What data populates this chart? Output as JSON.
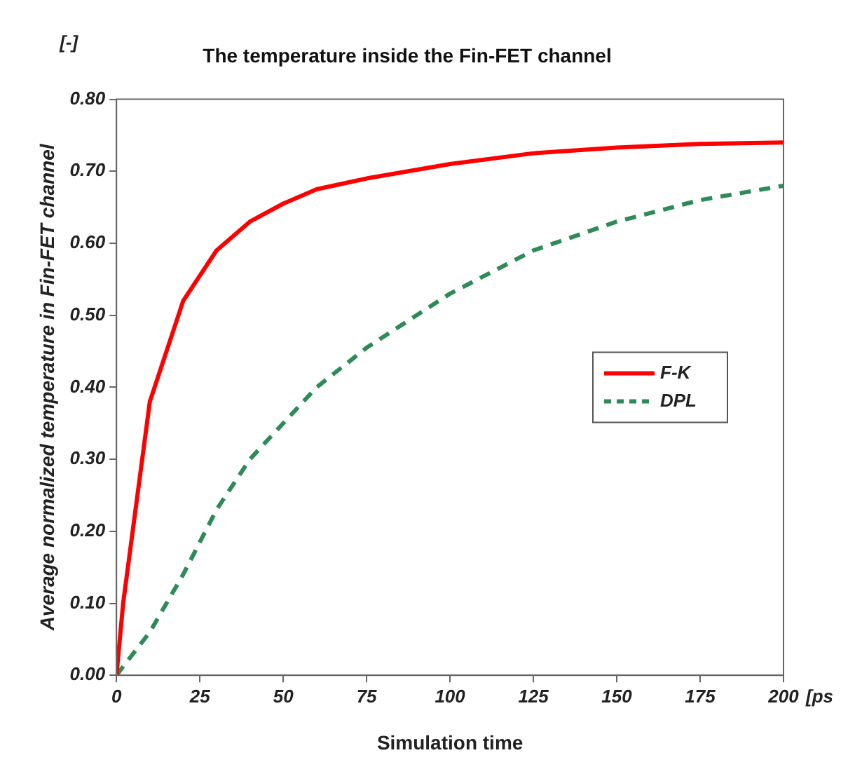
{
  "chart_data": {
    "type": "line",
    "title": "The temperature inside the Fin-FET channel",
    "xlabel": "Simulation time",
    "ylabel": "Average normalized temperature in Fin-FET channel",
    "annotations": [
      "[-]",
      "[ps"
    ],
    "xlim": [
      0,
      200
    ],
    "xticks": [
      0,
      25,
      50,
      75,
      100,
      125,
      150,
      175,
      200
    ],
    "ylim": [
      0,
      0.8
    ],
    "yticks": [
      {
        "value": 0,
        "label": "0.00"
      },
      {
        "value": 0.1,
        "label": "0.10"
      },
      {
        "value": 0.2,
        "label": "0.20"
      },
      {
        "value": 0.3,
        "label": "0.30"
      },
      {
        "value": 0.4,
        "label": "0.40"
      },
      {
        "value": 0.5,
        "label": "0.50"
      },
      {
        "value": 0.6,
        "label": "0.60"
      },
      {
        "value": 0.7,
        "label": "0.70"
      },
      {
        "value": 0.8,
        "label": "0.80"
      }
    ],
    "grid": false,
    "legend": "right",
    "marker": "none",
    "series": [
      {
        "name": "F-K",
        "color": "#ff0000",
        "line_style": "solid",
        "x": [
          0,
          2,
          10,
          20,
          30,
          40,
          50,
          60,
          75,
          100,
          125,
          150,
          175,
          200
        ],
        "values": [
          0,
          0.1,
          0.38,
          0.52,
          0.59,
          0.63,
          0.655,
          0.675,
          0.69,
          0.71,
          0.725,
          0.733,
          0.738,
          0.74
        ]
      },
      {
        "name": "DPL",
        "color": "#2e8b57",
        "line_style": "dashed",
        "x": [
          0,
          10,
          20,
          30,
          40,
          50,
          60,
          75,
          100,
          125,
          150,
          175,
          200
        ],
        "values": [
          0,
          0.06,
          0.14,
          0.23,
          0.3,
          0.35,
          0.4,
          0.455,
          0.53,
          0.59,
          0.63,
          0.66,
          0.68
        ]
      }
    ]
  }
}
